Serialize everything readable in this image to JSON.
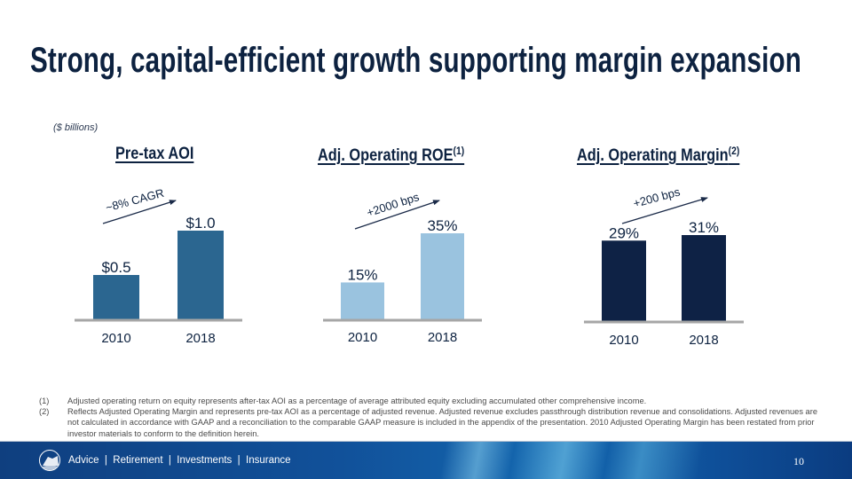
{
  "slide": {
    "title": "Strong, capital-efficient growth supporting margin expansion",
    "units_note": "($ billions)",
    "page_number": "10"
  },
  "colors": {
    "title": "#0d2240",
    "aoi_bar": "#2b6690",
    "roe_bar": "#9ac3df",
    "margin_bar": "#0e2245",
    "baseline": "#a6a6a6",
    "arrow": "#1a2a48"
  },
  "chart_data": [
    {
      "type": "bar",
      "title": "Pre-tax AOI",
      "title_footnote": "",
      "categories": [
        "2010",
        "2018"
      ],
      "values": [
        0.5,
        1.0
      ],
      "data_labels": [
        "$0.5",
        "$1.0"
      ],
      "unit": "$ billions",
      "annotation": "~8% CAGR",
      "xlabel": "",
      "ylabel": "",
      "ylim": [
        0,
        1.0
      ],
      "grid": false,
      "legend": "none"
    },
    {
      "type": "bar",
      "title": "Adj. Operating ROE",
      "title_footnote": "(1)",
      "categories": [
        "2010",
        "2018"
      ],
      "values": [
        15,
        35
      ],
      "data_labels": [
        "15%",
        "35%"
      ],
      "unit": "%",
      "annotation": "+2000 bps",
      "xlabel": "",
      "ylabel": "",
      "ylim": [
        0,
        35
      ],
      "grid": false,
      "legend": "none"
    },
    {
      "type": "bar",
      "title": "Adj. Operating Margin",
      "title_footnote": "(2)",
      "categories": [
        "2010",
        "2018"
      ],
      "values": [
        29,
        31
      ],
      "data_labels": [
        "29%",
        "31%"
      ],
      "unit": "%",
      "annotation": "+200 bps",
      "xlabel": "",
      "ylabel": "",
      "ylim": [
        0,
        31
      ],
      "grid": false,
      "legend": "none"
    }
  ],
  "footnotes": [
    {
      "num": "(1)",
      "text": "Adjusted operating return on equity represents after-tax AOI as a percentage of average attributed equity excluding accumulated other comprehensive income."
    },
    {
      "num": "(2)",
      "text": "Reflects Adjusted Operating Margin and represents pre-tax AOI as a percentage of adjusted revenue. Adjusted revenue excludes passthrough distribution revenue and consolidations. Adjusted revenues are not calculated in accordance with GAAP and a reconciliation to the comparable GAAP measure is included in the appendix of the presentation. 2010 Adjusted Operating Margin has been restated from prior investor materials to conform to the definition herein."
    }
  ],
  "footer": {
    "logo_icon": "rock-logo-icon",
    "tagline": "Advice  |  Retirement  |  Investments  |  Insurance"
  }
}
